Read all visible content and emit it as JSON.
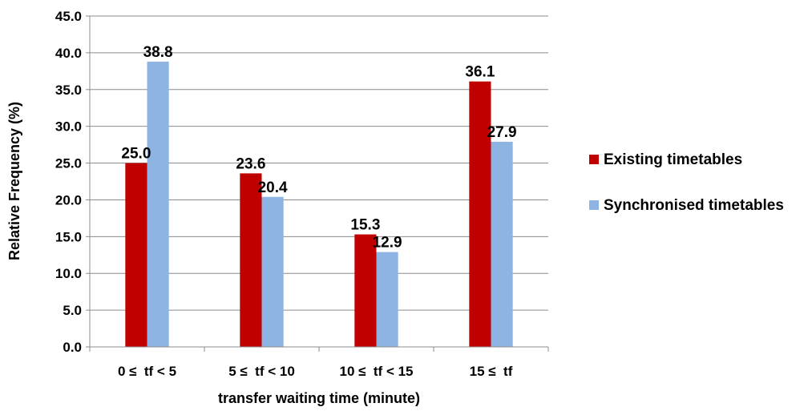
{
  "chart_data": {
    "type": "bar",
    "title": "",
    "xlabel": "transfer waiting time (minute)",
    "ylabel": "Relative Frequency (%)",
    "ylim": [
      0,
      45
    ],
    "y_ticks": [
      "0.0",
      "5.0",
      "10.0",
      "15.0",
      "20.0",
      "25.0",
      "30.0",
      "35.0",
      "40.0",
      "45.0"
    ],
    "categories": [
      "0 ≤  tf < 5",
      "5 ≤  tf < 10",
      "10 ≤  tf < 15",
      "15 ≤  tf"
    ],
    "series": [
      {
        "name": "Existing timetables",
        "color": "#c00000",
        "values": [
          25.0,
          23.6,
          15.3,
          36.1
        ]
      },
      {
        "name": "Synchronised timetables",
        "color": "#8db4e2",
        "values": [
          38.8,
          20.4,
          12.9,
          27.9
        ]
      }
    ],
    "legend_position": "right",
    "grid": true
  }
}
